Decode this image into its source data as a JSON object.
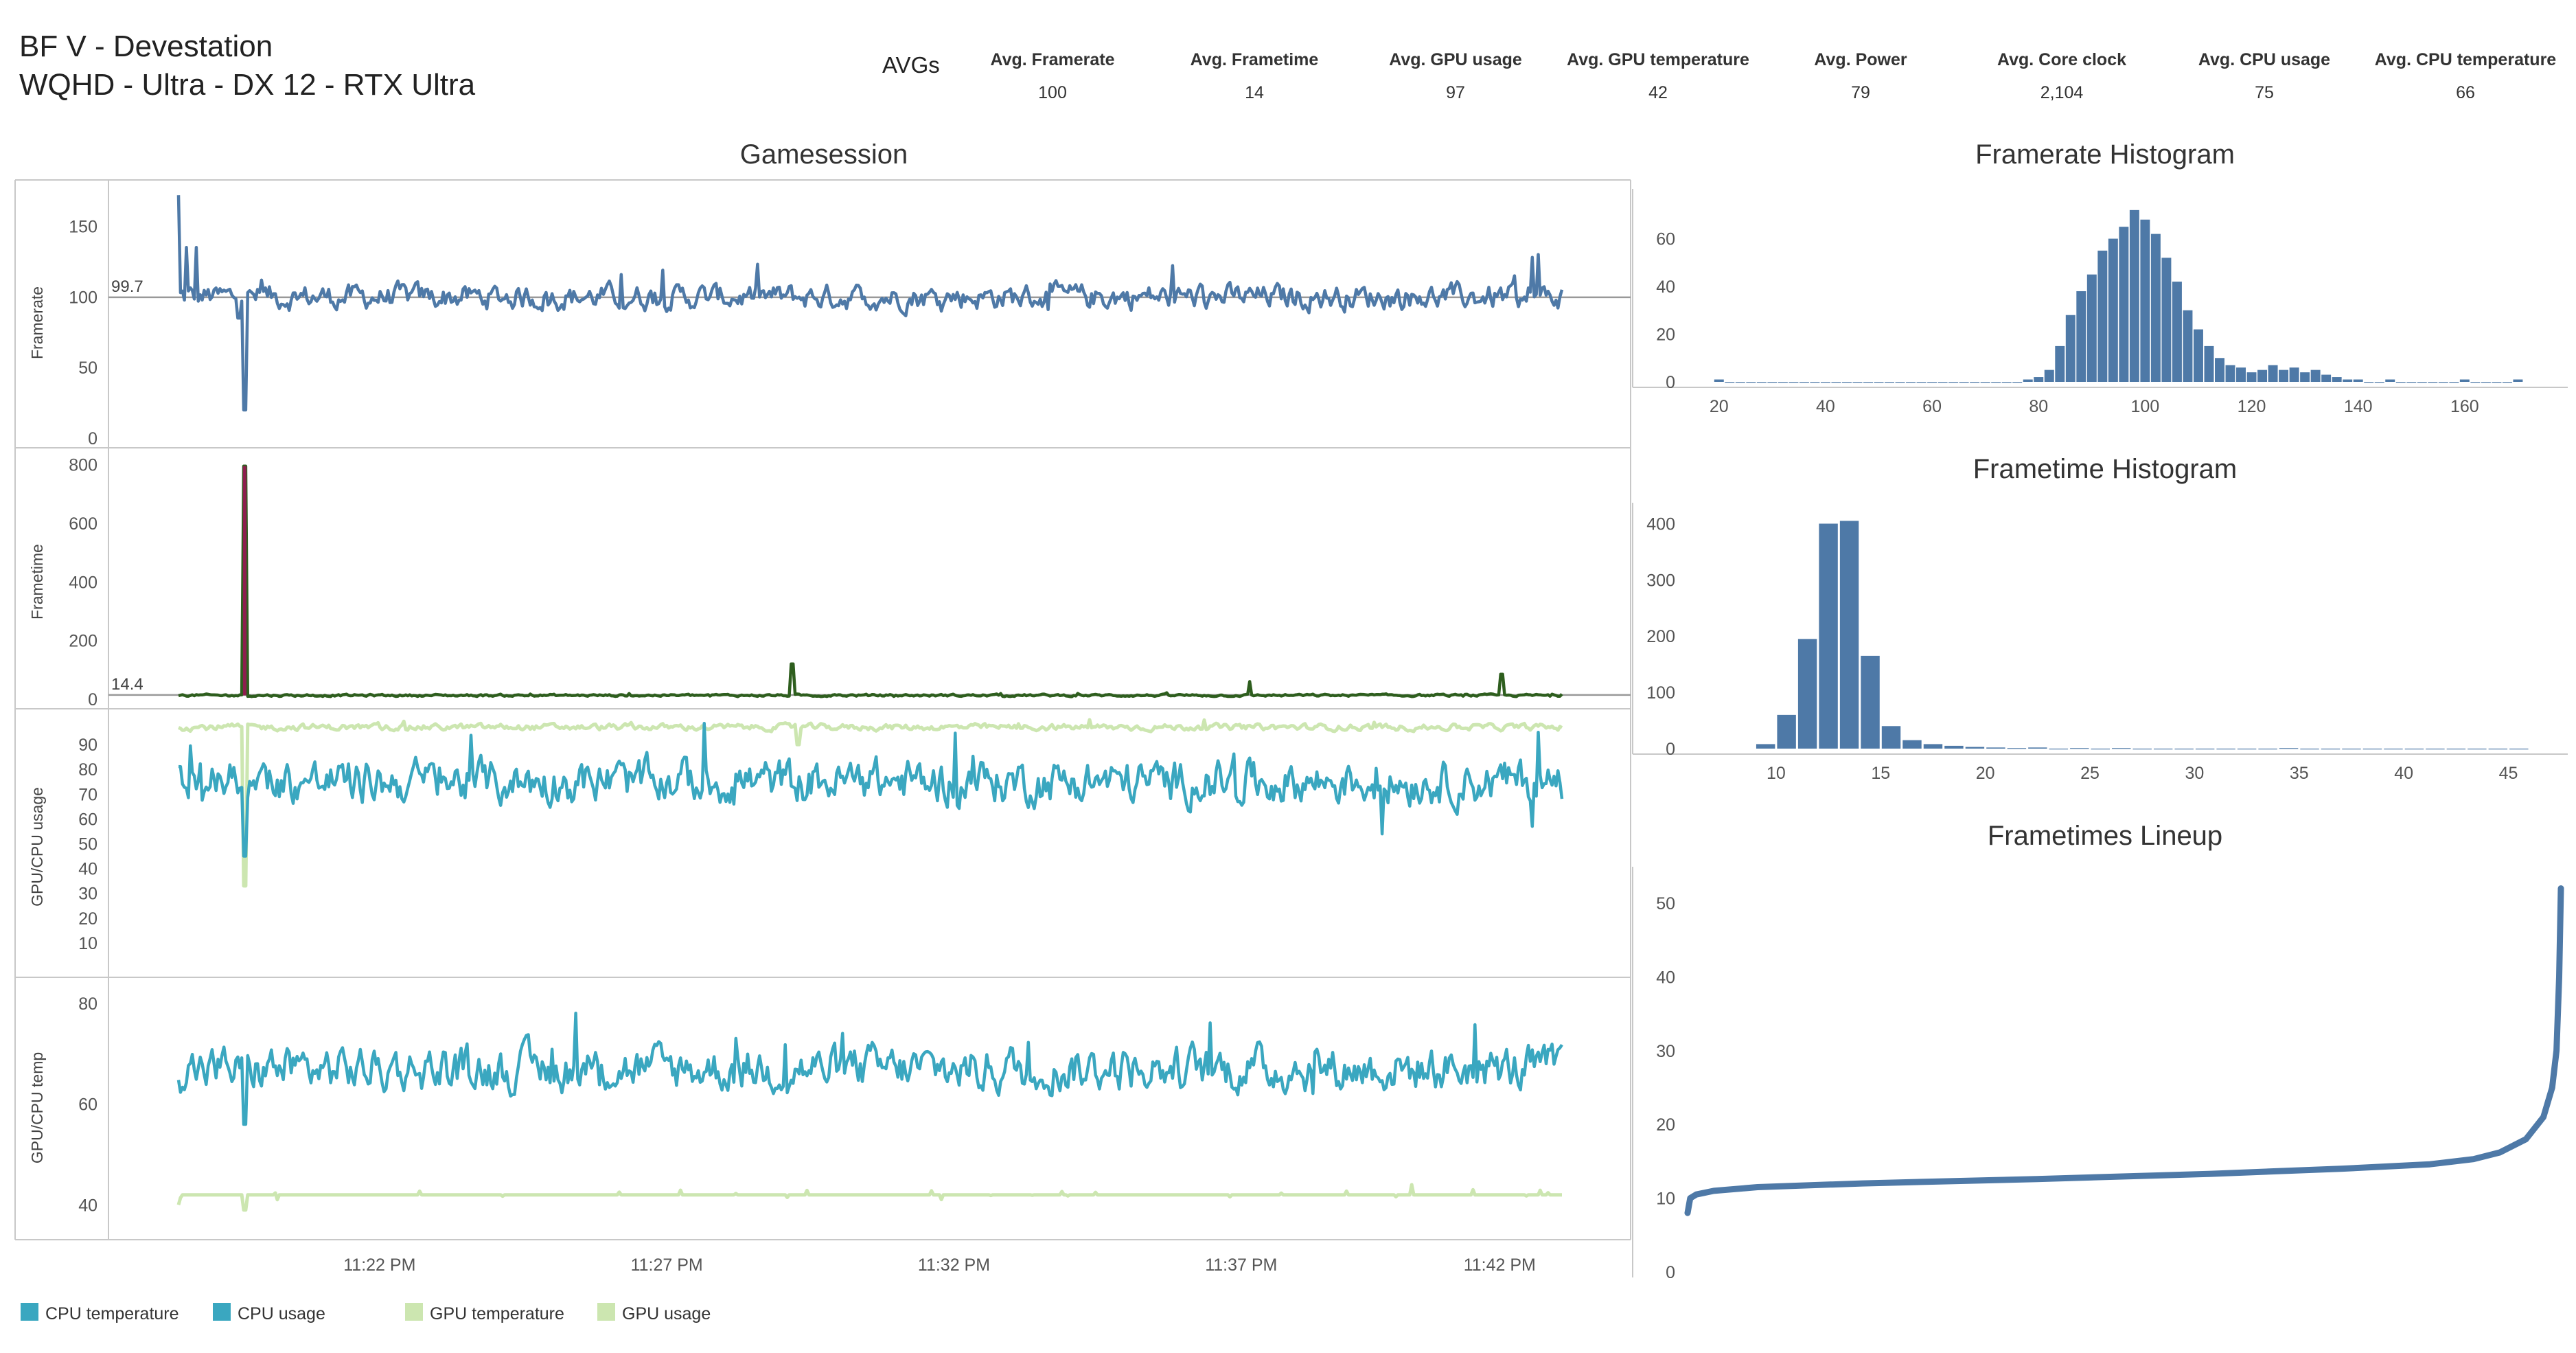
{
  "header": {
    "title_line1": "BF V - Devestation",
    "title_line2": "WQHD - Ultra - DX 12 - RTX Ultra",
    "avgs_label": "AVGs",
    "stats": [
      {
        "label": "Avg. Framerate",
        "value": "100"
      },
      {
        "label": "Avg. Frametime",
        "value": "14"
      },
      {
        "label": "Avg. GPU usage",
        "value": "97"
      },
      {
        "label": "Avg. GPU temperature",
        "value": "42"
      },
      {
        "label": "Avg. Power",
        "value": "79"
      },
      {
        "label": "Avg. Core clock",
        "value": "2,104"
      },
      {
        "label": "Avg. CPU usage",
        "value": "75"
      },
      {
        "label": "Avg. CPU temperature",
        "value": "66"
      }
    ]
  },
  "legend": [
    {
      "label": "CPU temperature",
      "color": "#3aa7c0"
    },
    {
      "label": "CPU usage",
      "color": "#3aa7c0"
    },
    {
      "label": "GPU temperature",
      "color": "#cce6b0"
    },
    {
      "label": "GPU usage",
      "color": "#cce6b0"
    }
  ],
  "colors": {
    "framerate": "#4e79a7",
    "frametime": "#2e5e1e",
    "frametime_spike": "#8e1e4e",
    "cpu": "#3aa7c0",
    "gpu": "#cce6b0",
    "bars": "#4e79a7",
    "refline": "#999999",
    "grid": "#c8c8c8"
  },
  "chart_data": [
    {
      "type": "line",
      "title": "Gamesession",
      "x_axis": {
        "ticks": [
          "11:22 PM",
          "11:27 PM",
          "11:32 PM",
          "11:37 PM",
          "11:42 PM"
        ],
        "range_minutes": [
          0,
          23
        ]
      },
      "panels": [
        {
          "ylabel": "Framerate",
          "ylim": [
            0,
            175
          ],
          "yticks": [
            0,
            50,
            100,
            150
          ],
          "reference": {
            "value": 99.7,
            "label": "99.7"
          },
          "series": [
            {
              "type": "noisy",
              "color_key": "framerate",
              "base": 100,
              "amp": 7,
              "events": [
                {
                  "t": 0.0,
                  "v": 172
                },
                {
                  "t": 0.12,
                  "v": 135
                },
                {
                  "t": 0.3,
                  "v": 135
                },
                {
                  "t": 0.55,
                  "v": 100
                },
                {
                  "t": 1.0,
                  "v": 85
                },
                {
                  "t": 1.1,
                  "v": 20
                },
                {
                  "t": 22.4,
                  "v": 97
                },
                {
                  "t": 22.5,
                  "v": 128
                },
                {
                  "t": 22.6,
                  "v": 130
                }
              ]
            }
          ]
        },
        {
          "ylabel": "Frametime",
          "ylim": [
            0,
            820
          ],
          "yticks": [
            0,
            200,
            400,
            600,
            800
          ],
          "reference": {
            "value": 14.4,
            "label": "14.4"
          },
          "series": [
            {
              "type": "noisy",
              "color_key": "frametime",
              "base": 13,
              "amp": 3,
              "events": [
                {
                  "t": 1.1,
                  "v": 795,
                  "color_key": "frametime_spike"
                },
                {
                  "t": 10.2,
                  "v": 120
                },
                {
                  "t": 17.8,
                  "v": 60
                },
                {
                  "t": 22.0,
                  "v": 85
                }
              ]
            }
          ]
        },
        {
          "ylabel": "GPU/CPU usage",
          "ylim": [
            0,
            100
          ],
          "yticks": [
            10,
            20,
            30,
            40,
            50,
            60,
            70,
            80,
            90
          ],
          "series": [
            {
              "name": "GPU usage",
              "type": "noisy",
              "color_key": "gpu",
              "base": 97,
              "amp": 1,
              "events": [
                {
                  "t": 1.1,
                  "v": 33
                },
                {
                  "t": 10.3,
                  "v": 90
                }
              ]
            },
            {
              "name": "CPU usage",
              "type": "noisy",
              "color_key": "cpu",
              "base": 75,
              "amp": 7,
              "events": [
                {
                  "t": 1.1,
                  "v": 45
                },
                {
                  "t": 20.0,
                  "v": 54
                },
                {
                  "t": 22.5,
                  "v": 57
                }
              ]
            }
          ]
        },
        {
          "ylabel": "GPU/CPU temp",
          "ylim": [
            35,
            83
          ],
          "yticks": [
            40,
            60,
            80
          ],
          "series": [
            {
              "name": "CPU temperature",
              "type": "noisy",
              "color_key": "cpu",
              "base": 67,
              "amp": 3.5,
              "events": [
                {
                  "t": 1.1,
                  "v": 56
                }
              ]
            },
            {
              "name": "GPU temperature",
              "type": "step",
              "color_key": "gpu",
              "base": 42,
              "amp": 0.5,
              "events": [
                {
                  "t": 0.0,
                  "v": 40
                },
                {
                  "t": 1.1,
                  "v": 39
                },
                {
                  "t": 20.5,
                  "v": 44
                }
              ]
            }
          ]
        }
      ]
    },
    {
      "type": "bar",
      "title": "Framerate Histogram",
      "x": [
        20,
        22,
        24,
        26,
        28,
        30,
        32,
        34,
        36,
        38,
        40,
        42,
        44,
        46,
        48,
        50,
        52,
        54,
        56,
        58,
        60,
        62,
        64,
        66,
        68,
        70,
        72,
        74,
        76,
        78,
        80,
        82,
        84,
        86,
        88,
        90,
        92,
        94,
        96,
        98,
        100,
        102,
        104,
        106,
        108,
        110,
        112,
        114,
        116,
        118,
        120,
        122,
        124,
        126,
        128,
        130,
        132,
        134,
        136,
        138,
        140,
        142,
        144,
        146,
        148,
        150,
        152,
        154,
        156,
        158,
        160,
        162,
        164,
        166,
        168,
        170
      ],
      "values": [
        1,
        0,
        0,
        0,
        0,
        0,
        0,
        0,
        0,
        0,
        0,
        0,
        0,
        0,
        0,
        0,
        0,
        0,
        0,
        0,
        0,
        0,
        0,
        0,
        0,
        0,
        0,
        0,
        0,
        1,
        2,
        5,
        15,
        28,
        38,
        45,
        55,
        60,
        65,
        72,
        68,
        62,
        52,
        42,
        30,
        22,
        15,
        10,
        7,
        6,
        4,
        5,
        7,
        5,
        6,
        4,
        5,
        3,
        2,
        1,
        1,
        0,
        0,
        1,
        0,
        0,
        0,
        0,
        0,
        0,
        1,
        0,
        0,
        0,
        0,
        1
      ],
      "xlim": [
        15,
        180
      ],
      "ylim": [
        0,
        78
      ],
      "xticks": [
        20,
        40,
        60,
        80,
        100,
        120,
        140,
        160
      ],
      "yticks": [
        0,
        20,
        40,
        60
      ]
    },
    {
      "type": "bar",
      "title": "Frametime Histogram",
      "x": [
        9.5,
        10.5,
        11.5,
        12.5,
        13.5,
        14.5,
        15.5,
        16.5,
        17.5,
        18.5,
        19.5,
        20.5,
        21.5,
        22.5,
        23.5,
        24.5,
        25.5,
        26.5,
        27.5,
        28.5,
        29.5,
        30.5,
        31.5,
        32.5,
        33.5,
        34.5,
        35.5,
        36.5,
        37.5,
        38.5,
        39.5,
        40.5,
        41.5,
        42.5,
        43.5,
        44.5,
        45.5
      ],
      "values": [
        8,
        60,
        195,
        400,
        405,
        165,
        40,
        15,
        8,
        5,
        3,
        2,
        1,
        2,
        0,
        1,
        0,
        1,
        0,
        0,
        0,
        0,
        0,
        0,
        0,
        1,
        0,
        0,
        0,
        0,
        0,
        0,
        0,
        0,
        0,
        0,
        0
      ],
      "xlim": [
        6,
        48
      ],
      "ylim": [
        0,
        425
      ],
      "xticks": [
        10,
        15,
        20,
        25,
        30,
        35,
        40,
        45
      ],
      "yticks": [
        0,
        100,
        200,
        300,
        400
      ]
    },
    {
      "type": "line",
      "title": "Frametimes Lineup",
      "x": [
        0,
        0.3,
        1,
        3,
        8,
        20,
        40,
        60,
        75,
        85,
        90,
        93,
        96,
        98,
        99,
        99.5,
        99.8,
        100
      ],
      "values": [
        8,
        10,
        10.5,
        11,
        11.5,
        12,
        12.6,
        13.3,
        14,
        14.6,
        15.3,
        16.2,
        18,
        21,
        25,
        30,
        40,
        52
      ],
      "xlim": [
        0,
        100
      ],
      "ylim": [
        0,
        54
      ],
      "yticks": [
        0,
        10,
        20,
        30,
        40,
        50
      ]
    }
  ]
}
